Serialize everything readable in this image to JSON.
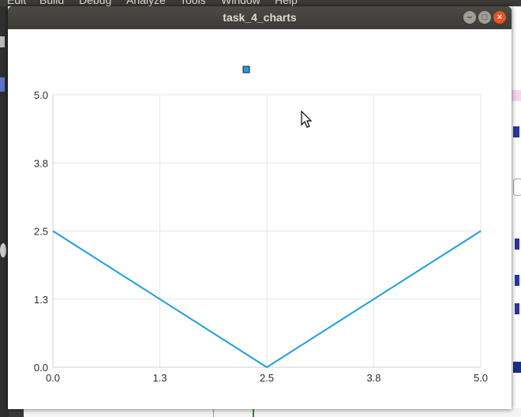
{
  "background_ide": {
    "menu_items": [
      "Edit",
      "Build",
      "Debug",
      "Analyze",
      "Tools",
      "Window",
      "Help"
    ]
  },
  "window": {
    "title": "task_4_charts",
    "controls": {
      "minimize_icon": "minimize-icon",
      "maximize_icon": "maximize-icon",
      "close_icon": "close-icon"
    }
  },
  "chart_data": {
    "type": "line",
    "title": "",
    "xlabel": "",
    "ylabel": "",
    "xlim": [
      0.0,
      5.0
    ],
    "ylim": [
      0.0,
      5.0
    ],
    "x_ticks": [
      "0.0",
      "1.3",
      "2.5",
      "3.8",
      "5.0"
    ],
    "y_ticks": [
      "0.0",
      "1.3",
      "2.5",
      "3.8",
      "5.0"
    ],
    "grid": true,
    "legend": "top-center",
    "colors": {
      "series": "#209fdf",
      "grid": "#e6e6e6",
      "axis": "#cfcfcf",
      "legend_marker": "#209fdf"
    },
    "series": [
      {
        "name": "",
        "x": [
          0.0,
          0.5,
          1.0,
          1.5,
          2.0,
          2.4,
          2.5,
          2.6,
          3.0,
          3.5,
          4.0,
          4.5,
          5.0
        ],
        "y": [
          2.5,
          2.0,
          1.5,
          1.0,
          0.5,
          0.1,
          0.0,
          0.1,
          0.5,
          1.0,
          1.5,
          2.0,
          2.5
        ]
      }
    ]
  }
}
